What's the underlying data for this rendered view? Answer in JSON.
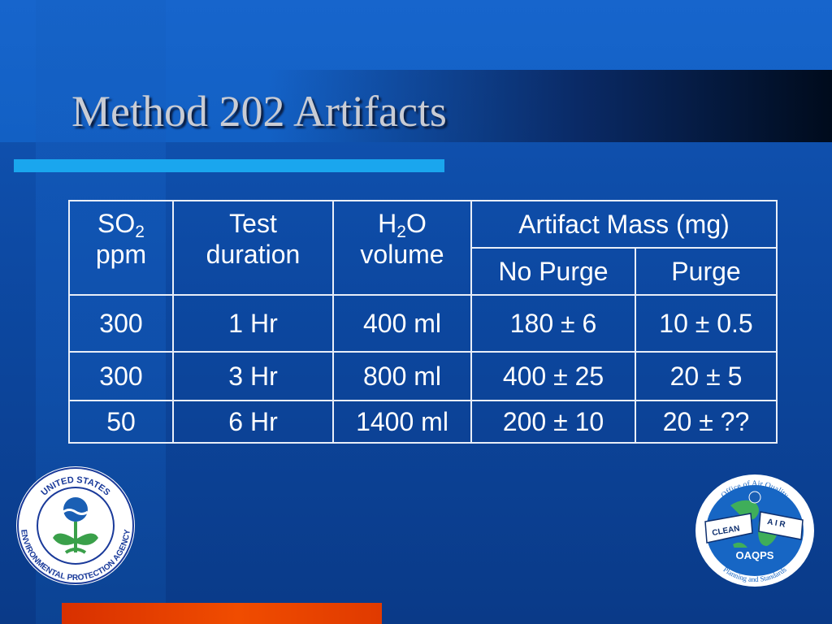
{
  "slide": {
    "title": "Method 202 Artifacts",
    "colors": {
      "accent_rule": "#1aa6ee",
      "bottom_bar": "#e84400",
      "background": "#0d4aa4"
    }
  },
  "table": {
    "header": {
      "so2": {
        "main": "SO",
        "sub": "2",
        "unit": "ppm"
      },
      "test_duration": {
        "line1": "Test",
        "line2": "duration"
      },
      "h2o": {
        "main_a": "H",
        "sub": "2",
        "main_b": "O",
        "line2": "volume"
      },
      "artifact_group": "Artifact Mass (mg)",
      "no_purge": "No Purge",
      "purge": "Purge"
    },
    "rows": [
      {
        "so2": "300",
        "duration": "1 Hr",
        "volume": "400 ml",
        "no_purge": "180 ± 6",
        "purge": "10 ± 0.5"
      },
      {
        "so2": "300",
        "duration": "3 Hr",
        "volume": "800 ml",
        "no_purge": "400 ± 25",
        "purge": "20 ± 5"
      },
      {
        "so2": "50",
        "duration": "6 Hr",
        "volume": "1400 ml",
        "no_purge": "200 ± 10",
        "purge": "20 ± ??"
      }
    ]
  },
  "logos": {
    "epa": {
      "text_top": "UNITED STATES",
      "text_bottom": "ENVIRONMENTAL PROTECTION AGENCY",
      "icon": "epa-flower-icon"
    },
    "oaqps": {
      "text_top": "Office of Air Quality",
      "text_bottom": "Planning and Standards",
      "clean": "CLEAN",
      "air": "A I R",
      "name": "OAQPS",
      "icon": "globe-icon"
    }
  }
}
